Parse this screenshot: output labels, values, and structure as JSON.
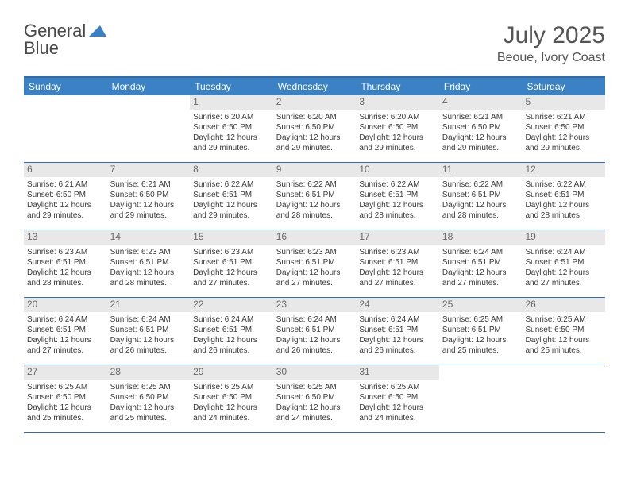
{
  "brand": {
    "part1": "General",
    "part2": "Blue"
  },
  "title": "July 2025",
  "location": "Beoue, Ivory Coast",
  "colors": {
    "header_bar": "#3b82c4",
    "header_border": "#2f6bad",
    "daynum_bg": "#e8e8e8",
    "text": "#3a3a3a",
    "logo_gray": "#4a4a4a",
    "logo_blue": "#3b7fc4"
  },
  "weekdays": [
    "Sunday",
    "Monday",
    "Tuesday",
    "Wednesday",
    "Thursday",
    "Friday",
    "Saturday"
  ],
  "weeks": [
    [
      null,
      null,
      {
        "n": "1",
        "sunrise": "6:20 AM",
        "sunset": "6:50 PM",
        "day_h": "12",
        "day_m": "29"
      },
      {
        "n": "2",
        "sunrise": "6:20 AM",
        "sunset": "6:50 PM",
        "day_h": "12",
        "day_m": "29"
      },
      {
        "n": "3",
        "sunrise": "6:20 AM",
        "sunset": "6:50 PM",
        "day_h": "12",
        "day_m": "29"
      },
      {
        "n": "4",
        "sunrise": "6:21 AM",
        "sunset": "6:50 PM",
        "day_h": "12",
        "day_m": "29"
      },
      {
        "n": "5",
        "sunrise": "6:21 AM",
        "sunset": "6:50 PM",
        "day_h": "12",
        "day_m": "29"
      }
    ],
    [
      {
        "n": "6",
        "sunrise": "6:21 AM",
        "sunset": "6:50 PM",
        "day_h": "12",
        "day_m": "29"
      },
      {
        "n": "7",
        "sunrise": "6:21 AM",
        "sunset": "6:50 PM",
        "day_h": "12",
        "day_m": "29"
      },
      {
        "n": "8",
        "sunrise": "6:22 AM",
        "sunset": "6:51 PM",
        "day_h": "12",
        "day_m": "29"
      },
      {
        "n": "9",
        "sunrise": "6:22 AM",
        "sunset": "6:51 PM",
        "day_h": "12",
        "day_m": "28"
      },
      {
        "n": "10",
        "sunrise": "6:22 AM",
        "sunset": "6:51 PM",
        "day_h": "12",
        "day_m": "28"
      },
      {
        "n": "11",
        "sunrise": "6:22 AM",
        "sunset": "6:51 PM",
        "day_h": "12",
        "day_m": "28"
      },
      {
        "n": "12",
        "sunrise": "6:22 AM",
        "sunset": "6:51 PM",
        "day_h": "12",
        "day_m": "28"
      }
    ],
    [
      {
        "n": "13",
        "sunrise": "6:23 AM",
        "sunset": "6:51 PM",
        "day_h": "12",
        "day_m": "28"
      },
      {
        "n": "14",
        "sunrise": "6:23 AM",
        "sunset": "6:51 PM",
        "day_h": "12",
        "day_m": "28"
      },
      {
        "n": "15",
        "sunrise": "6:23 AM",
        "sunset": "6:51 PM",
        "day_h": "12",
        "day_m": "27"
      },
      {
        "n": "16",
        "sunrise": "6:23 AM",
        "sunset": "6:51 PM",
        "day_h": "12",
        "day_m": "27"
      },
      {
        "n": "17",
        "sunrise": "6:23 AM",
        "sunset": "6:51 PM",
        "day_h": "12",
        "day_m": "27"
      },
      {
        "n": "18",
        "sunrise": "6:24 AM",
        "sunset": "6:51 PM",
        "day_h": "12",
        "day_m": "27"
      },
      {
        "n": "19",
        "sunrise": "6:24 AM",
        "sunset": "6:51 PM",
        "day_h": "12",
        "day_m": "27"
      }
    ],
    [
      {
        "n": "20",
        "sunrise": "6:24 AM",
        "sunset": "6:51 PM",
        "day_h": "12",
        "day_m": "27"
      },
      {
        "n": "21",
        "sunrise": "6:24 AM",
        "sunset": "6:51 PM",
        "day_h": "12",
        "day_m": "26"
      },
      {
        "n": "22",
        "sunrise": "6:24 AM",
        "sunset": "6:51 PM",
        "day_h": "12",
        "day_m": "26"
      },
      {
        "n": "23",
        "sunrise": "6:24 AM",
        "sunset": "6:51 PM",
        "day_h": "12",
        "day_m": "26"
      },
      {
        "n": "24",
        "sunrise": "6:24 AM",
        "sunset": "6:51 PM",
        "day_h": "12",
        "day_m": "26"
      },
      {
        "n": "25",
        "sunrise": "6:25 AM",
        "sunset": "6:51 PM",
        "day_h": "12",
        "day_m": "25"
      },
      {
        "n": "26",
        "sunrise": "6:25 AM",
        "sunset": "6:50 PM",
        "day_h": "12",
        "day_m": "25"
      }
    ],
    [
      {
        "n": "27",
        "sunrise": "6:25 AM",
        "sunset": "6:50 PM",
        "day_h": "12",
        "day_m": "25"
      },
      {
        "n": "28",
        "sunrise": "6:25 AM",
        "sunset": "6:50 PM",
        "day_h": "12",
        "day_m": "25"
      },
      {
        "n": "29",
        "sunrise": "6:25 AM",
        "sunset": "6:50 PM",
        "day_h": "12",
        "day_m": "24"
      },
      {
        "n": "30",
        "sunrise": "6:25 AM",
        "sunset": "6:50 PM",
        "day_h": "12",
        "day_m": "24"
      },
      {
        "n": "31",
        "sunrise": "6:25 AM",
        "sunset": "6:50 PM",
        "day_h": "12",
        "day_m": "24"
      },
      null,
      null
    ]
  ]
}
